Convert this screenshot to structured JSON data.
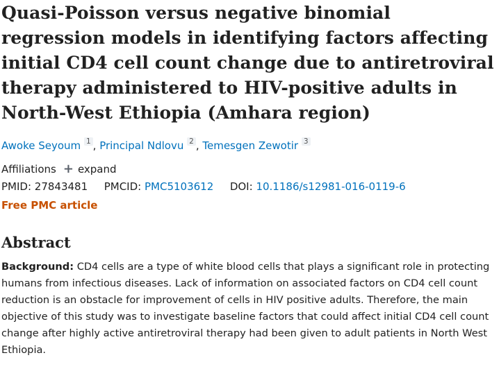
{
  "article": {
    "title": "Quasi-Poisson versus negative binomial regression models in identifying factors affecting initial CD4 cell count change due to antiretroviral therapy administered to HIV-positive adults in North-West Ethiopia (Amhara region)",
    "authors": [
      {
        "name": "Awoke Seyoum",
        "sup": "1"
      },
      {
        "name": "Principal Ndlovu",
        "sup": "2"
      },
      {
        "name": "Temesgen Zewotir",
        "sup": "3"
      }
    ],
    "affiliations_label": "Affiliations",
    "expand_label": "expand",
    "pmid_label": "PMID:",
    "pmid": "27843481",
    "pmcid_label": "PMCID:",
    "pmcid": "PMC5103612",
    "doi_label": "DOI:",
    "doi": "10.1186/s12981-016-0119-6",
    "free_label": "Free PMC article"
  },
  "abstract": {
    "heading": "Abstract",
    "background_label": "Background:",
    "background_text": "CD4 cells are a type of white blood cells that plays a significant role in protecting humans from infectious diseases. Lack of information on associated factors on CD4 cell count reduction is an obstacle for improvement of cells in HIV positive adults. Therefore, the main objective of this study was to investigate baseline factors that could affect initial CD4 cell count change after highly active antiretroviral therapy had been given to adult patients in North West Ethiopia."
  }
}
